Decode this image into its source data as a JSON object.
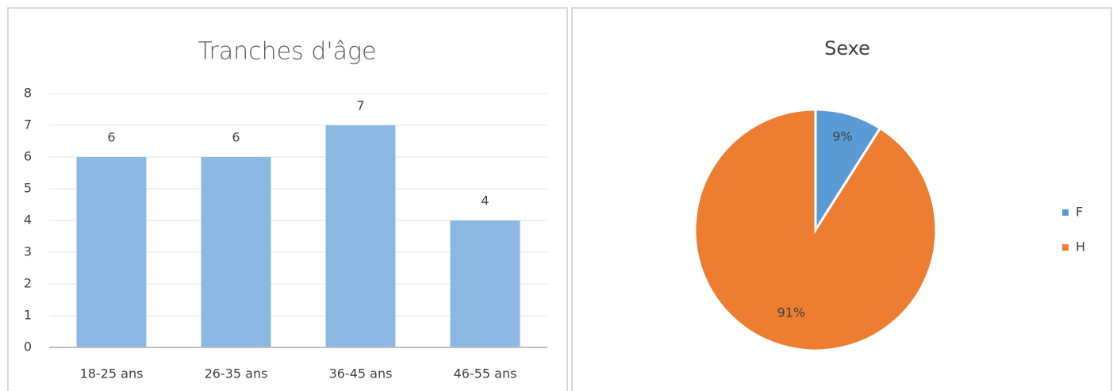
{
  "chart_data": [
    {
      "type": "bar",
      "title": "Tranches d'âge",
      "categories": [
        "18-25 ans",
        "26-35 ans",
        "36-45 ans",
        "46-55 ans"
      ],
      "values": [
        6,
        6,
        7,
        4
      ],
      "color": "#8cb9e3",
      "ylim": [
        0,
        8
      ],
      "yticks": [
        0,
        1,
        2,
        3,
        4,
        5,
        6,
        7,
        8
      ],
      "grid": true
    },
    {
      "type": "pie",
      "title": "Sexe",
      "categories": [
        "F",
        "H"
      ],
      "values": [
        9,
        91
      ],
      "value_labels": [
        "9%",
        "91%"
      ],
      "colors": [
        "#5b9bd5",
        "#ed7d31"
      ],
      "legend": "right"
    }
  ]
}
